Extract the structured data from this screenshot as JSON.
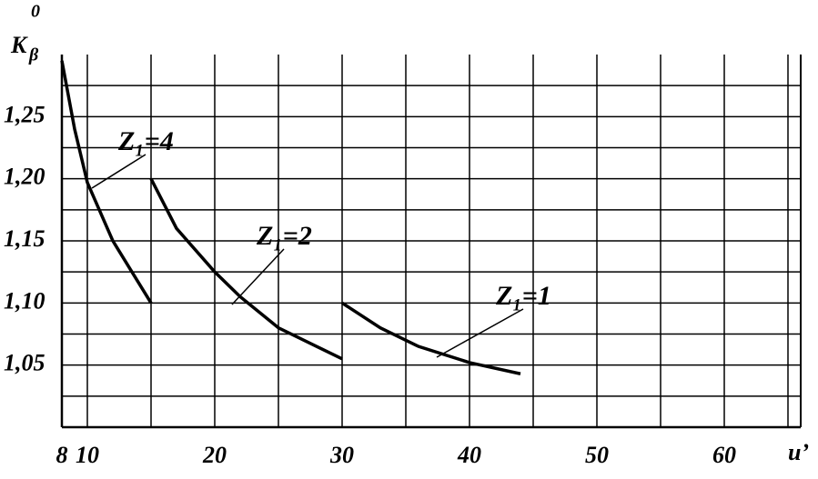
{
  "chart_data": {
    "type": "line",
    "y_label": "K",
    "y_label_subscript": "β",
    "y_label_superscript": "0",
    "x_label": "u’",
    "series": [
      {
        "name": "Z₁=4",
        "color": "#000000",
        "x": [
          8,
          9,
          10,
          12,
          13.5,
          15
        ],
        "values": [
          1.295,
          1.24,
          1.197,
          1.15,
          1.125,
          1.1
        ]
      },
      {
        "name": "Z₁=2",
        "color": "#000000",
        "x": [
          15,
          17,
          20,
          22,
          25,
          28,
          30
        ],
        "values": [
          1.2,
          1.16,
          1.125,
          1.105,
          1.08,
          1.065,
          1.055
        ]
      },
      {
        "name": "Z₁=1",
        "color": "#000000",
        "x": [
          30,
          33,
          36,
          40,
          44
        ],
        "values": [
          1.1,
          1.08,
          1.065,
          1.052,
          1.043
        ]
      }
    ],
    "xlim": [
      8,
      66
    ],
    "ylim": [
      1.0,
      1.3
    ],
    "xticks": [
      8,
      10,
      20,
      30,
      40,
      50,
      60
    ],
    "xgrid": [
      15,
      25,
      35,
      45,
      55,
      65
    ],
    "yticks": [
      {
        "value": 1.05,
        "label": "1,05"
      },
      {
        "value": 1.1,
        "label": "1,10"
      },
      {
        "value": 1.15,
        "label": "1,15"
      },
      {
        "value": 1.2,
        "label": "1,20"
      },
      {
        "value": 1.25,
        "label": "1,25"
      }
    ],
    "ygrid": [
      1.025,
      1.075,
      1.125,
      1.175,
      1.225,
      1.275
    ],
    "grid": true
  }
}
